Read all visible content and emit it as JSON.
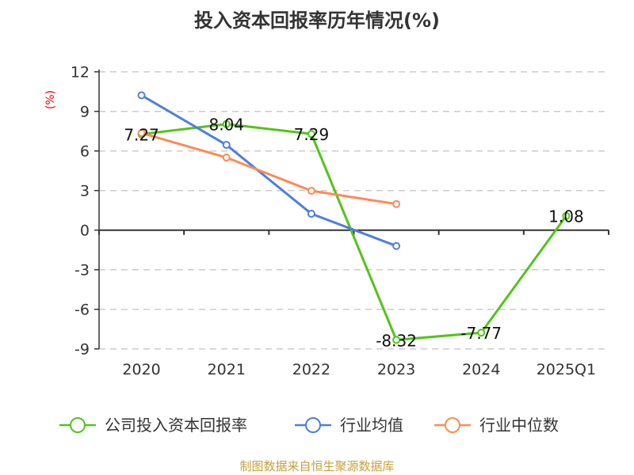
{
  "chart_data": {
    "type": "line",
    "title": "投入资本回报率历年情况(%)",
    "ylabel": "(%)",
    "xlabel": "",
    "ylim": [
      -9,
      12
    ],
    "yticks": [
      -9,
      -6,
      -3,
      0,
      3,
      6,
      9,
      12
    ],
    "ytick_labels": [
      "-9",
      "-6",
      "-3",
      "0",
      "3",
      "6",
      "9",
      "12"
    ],
    "grid": true,
    "legend_position": "bottom",
    "categories": [
      "2020",
      "2021",
      "2022",
      "2023",
      "2024",
      "2025Q1"
    ],
    "series": [
      {
        "name": "公司投入资本回报率",
        "color": "#52c41a",
        "values": [
          7.27,
          8.04,
          7.29,
          -8.32,
          -7.77,
          1.08
        ],
        "labels": [
          "7.27",
          "8.04",
          "7.29",
          "-8.32",
          "-7.77",
          "1.08"
        ]
      },
      {
        "name": "行业均值",
        "color": "#4e7fe0",
        "values": [
          10.22,
          6.46,
          1.24,
          -1.2,
          null,
          null
        ]
      },
      {
        "name": "行业中位数",
        "color": "#ff8a55",
        "values": [
          7.36,
          5.5,
          2.98,
          1.98,
          null,
          null
        ]
      }
    ]
  },
  "footer": "制图数据来自恒生聚源数据库"
}
